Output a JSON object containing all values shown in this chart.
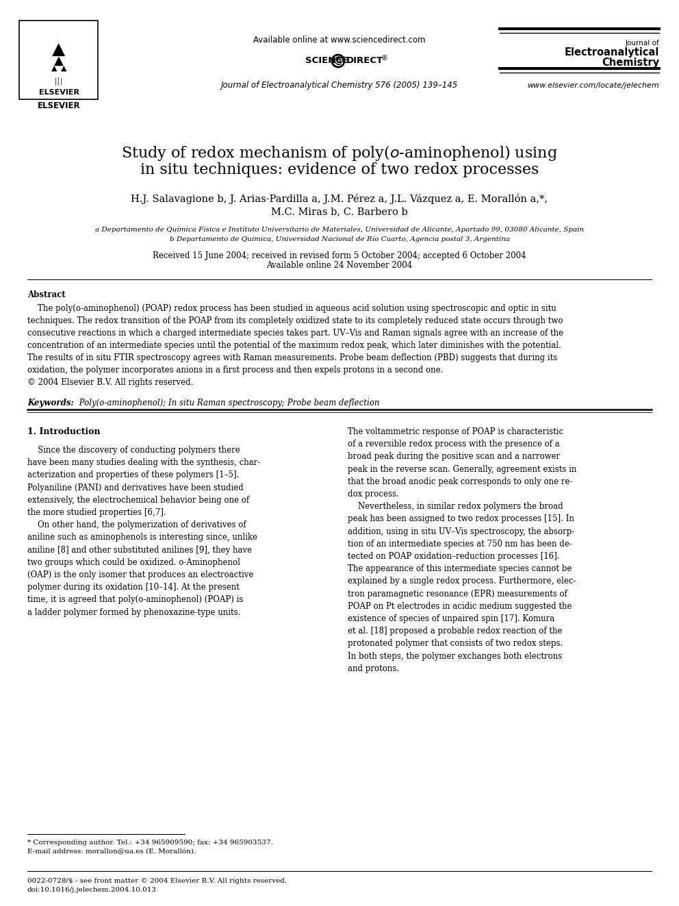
{
  "header_available": "Available online at www.sciencedirect.com",
  "header_journal_line1": "Journal of Electroanalytical Chemistry 576 (2005) 139–145",
  "journal_name_line1": "Journal of",
  "journal_name_line2": "Electroanalytical",
  "journal_name_line3": "Chemistry",
  "website": "www.elsevier.com/locate/jelechem",
  "title_line1": "Study of redox mechanism of poly(​o​-aminophenol) using",
  "title_line2": "in situ techniques: evidence of two redox processes",
  "authors_line1": "H.J. Salavagione b, J. Arias-Pardilla a, J.M. Pérez a, J.L. Vázquez a, E. Morallón a,*,",
  "authors_line2": "M.C. Miras b, C. Barbero b",
  "affil_a": "a Departamento de Química Física e Instituto Universitario de Materiales, Universidad de Alicante, Apartado 99, 03080 Alicante, Spain",
  "affil_b": "b Departamento de Química, Universidad Nacional de Río Cuarto, Agencia postal 3, Argentina",
  "received": "Received 15 June 2004; received in revised form 5 October 2004; accepted 6 October 2004",
  "available_online": "Available online 24 November 2004",
  "abstract_title": "Abstract",
  "abstract_body": "    The poly(o-aminophenol) (POAP) redox process has been studied in aqueous acid solution using spectroscopic and optic in situ\ntechniques. The redox transition of the POAP from its completely oxidized state to its completely reduced state occurs through two\nconsecutive reactions in which a charged intermediate species takes part. UV–Vis and Raman signals agree with an increase of the\nconcentration of an intermediate species until the potential of the maximum redox peak, which later diminishes with the potential.\nThe results of in situ FTIR spectroscopy agrees with Raman measurements. Probe beam deflection (PBD) suggests that during its\noxidation, the polymer incorporates anions in a first process and then expels protons in a second one.\n© 2004 Elsevier B.V. All rights reserved.",
  "keywords_label": "Keywords:",
  "keywords_body": " Poly(o-aminophenol); In situ Raman spectroscopy; Probe beam deflection",
  "section1_title": "1. Introduction",
  "left_col": "    Since the discovery of conducting polymers there\nhave been many studies dealing with the synthesis, char-\nacterization and properties of these polymers [1–5].\nPolyaniline (PANI) and derivatives have been studied\nextensively, the electrochemical behavior being one of\nthe more studied properties [6,7].\n    On other hand, the polymerization of derivatives of\naniline such as aminophenols is interesting since, unlike\naniline [8] and other substituted anilines [9], they have\ntwo groups which could be oxidized. o-Aminophenol\n(OAP) is the only isomer that produces an electroactive\npolymer during its oxidation [10–14]. At the present\ntime, it is agreed that poly(o-aminophenol) (POAP) is\na ladder polymer formed by phenoxazine-type units.",
  "right_col": "The voltammetric response of POAP is characteristic\nof a reversible redox process with the presence of a\nbroad peak during the positive scan and a narrower\npeak in the reverse scan. Generally, agreement exists in\nthat the broad anodic peak corresponds to only one re-\ndox process.\n    Nevertheless, in similar redox polymers the broad\npeak has been assigned to two redox processes [15]. In\naddition, using in situ UV–Vis spectroscopy, the absorp-\ntion of an intermediate species at 750 nm has been de-\ntected on POAP oxidation–reduction processes [16].\nThe appearance of this intermediate species cannot be\nexplained by a single redox process. Furthermore, elec-\ntron paramagnetic resonance (EPR) measurements of\nPOAP on Pt electrodes in acidic medium suggested the\nexistence of species of unpaired spin [17]. Komura\net al. [18] proposed a probable redox reaction of the\nprotonated polymer that consists of two redox steps.\nIn both steps, the polymer exchanges both electrons\nand protons.",
  "footnote_star": "* Corresponding author. Tel.: +34 965909590; fax: +34 965903537.",
  "footnote_email": "E-mail address: morallon@ua.es (E. Morallón).",
  "footer_issn": "0022-0728/$ - see front matter © 2004 Elsevier B.V. All rights reserved.",
  "footer_doi": "doi:10.1016/j.jelechem.2004.10.013",
  "bg_color": "#ffffff"
}
